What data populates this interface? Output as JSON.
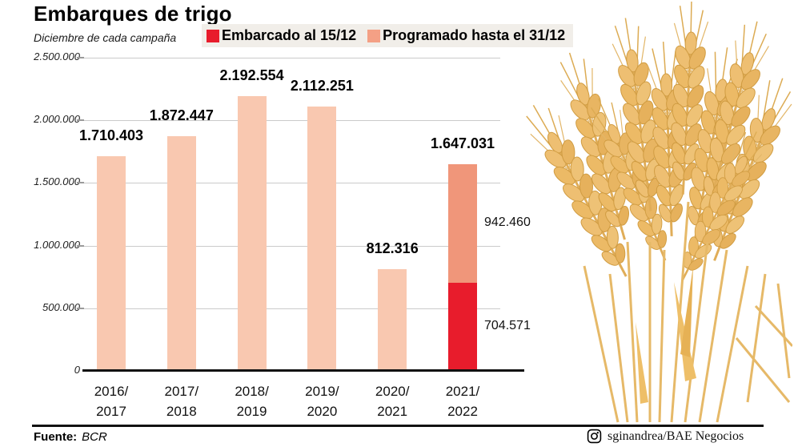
{
  "header": {
    "title": "Embarques de trigo",
    "subtitle": "Diciembre de cada campaña"
  },
  "legend": {
    "items": [
      {
        "label": "Embarcado al 15/12",
        "color": "#e81c2c"
      },
      {
        "label": "Programado hasta el 31/12",
        "color": "#f4a085"
      }
    ]
  },
  "chart_data": {
    "type": "bar",
    "stacked": true,
    "title": "Embarques de trigo",
    "subtitle": "Diciembre de cada campaña",
    "categories": [
      "2016/2017",
      "2017/2018",
      "2018/2019",
      "2019/2020",
      "2020/2021",
      "2021/2022"
    ],
    "series": [
      {
        "name": "Embarcado al 15/12",
        "color": "#e81c2c",
        "values": [
          0,
          0,
          0,
          0,
          0,
          704571
        ]
      },
      {
        "name": "Programado hasta el 31/12",
        "color": "#f9c8b0",
        "stacked_top_color": "#f0967a",
        "values": [
          1710403,
          1872447,
          2192554,
          2112251,
          812316,
          942460
        ]
      }
    ],
    "totals": [
      1710403,
      1872447,
      2192554,
      2112251,
      812316,
      1647031
    ],
    "totals_display": [
      "1.710.403",
      "1.872.447",
      "2.192.554",
      "2.112.251",
      "812.316",
      "1.647.031"
    ],
    "segment_labels": [
      {
        "text": "942.460",
        "bar": 5,
        "series": 1
      },
      {
        "text": "704.571",
        "bar": 5,
        "series": 0
      }
    ],
    "ylim": [
      0,
      2500000
    ],
    "yticks": [
      {
        "value": 2500000,
        "label": "2.500.000"
      },
      {
        "value": 2000000,
        "label": "2.000.000"
      },
      {
        "value": 1500000,
        "label": "1.500.000"
      },
      {
        "value": 1000000,
        "label": "1.000.000"
      },
      {
        "value": 500000,
        "label": "500.000"
      },
      {
        "value": 0,
        "label": "0"
      }
    ],
    "grid": true,
    "legend_position": "top"
  },
  "footer": {
    "source_label": "Fuente:",
    "source": "BCR",
    "credit": "sginandrea/BAE Negocios"
  }
}
